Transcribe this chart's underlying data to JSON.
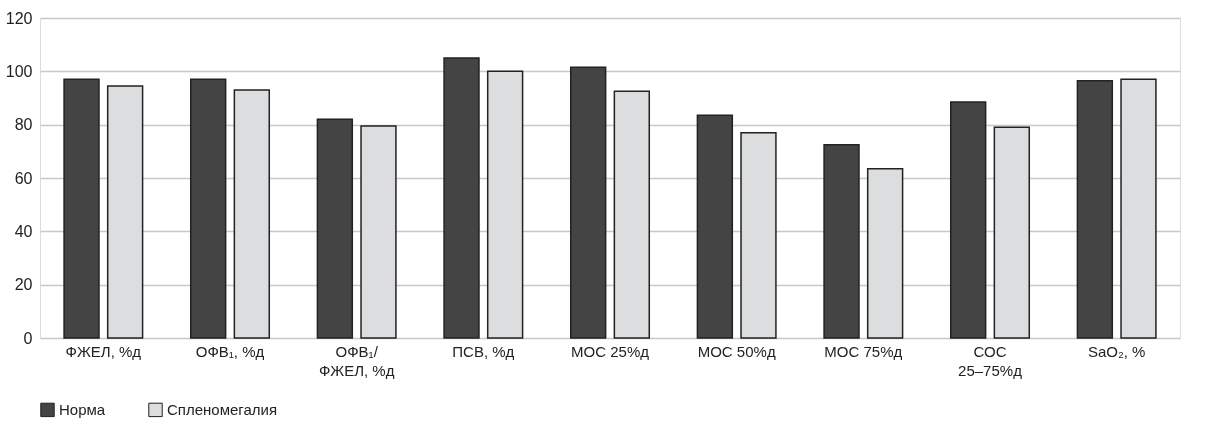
{
  "chart_data": {
    "type": "bar",
    "categories": [
      "ФЖЕЛ, %д",
      "ОФВ₁, %д",
      "ОФВ₁/\nФЖЕЛ, %д",
      "ПСВ, %д",
      "МОС 25%д",
      "МОС 50%д",
      "МОС 75%д",
      "СОС\n25–75%д",
      "SaO₂, %"
    ],
    "series": [
      {
        "name": "Норма",
        "color": "#444444",
        "values": [
          97,
          97,
          82,
          105,
          101.5,
          83.5,
          72.5,
          88.5,
          96.5
        ]
      },
      {
        "name": "Спленомегалия",
        "color": "#dcdddf",
        "values": [
          94.5,
          93,
          79.5,
          100,
          92.5,
          77,
          63.5,
          79,
          97
        ]
      }
    ],
    "ylim": [
      0,
      120
    ],
    "yticks": [
      0,
      20,
      40,
      60,
      80,
      100,
      120
    ],
    "grid": "y",
    "legend": "bottom"
  }
}
